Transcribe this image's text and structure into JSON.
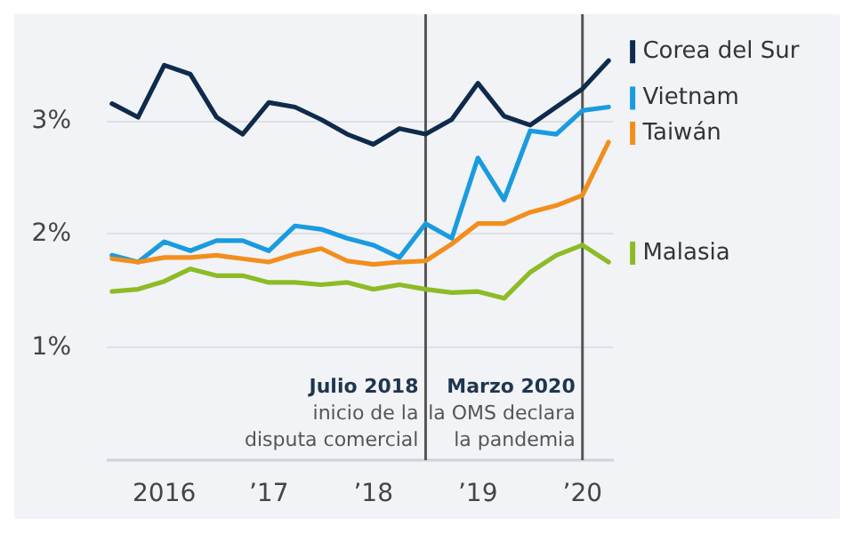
{
  "chart_data": {
    "type": "line",
    "x": [
      2015.5,
      2015.75,
      2016,
      2016.25,
      2016.5,
      2016.75,
      2017,
      2017.25,
      2017.5,
      2017.75,
      2018,
      2018.25,
      2018.5,
      2018.75,
      2019,
      2019.25,
      2019.5,
      2019.75,
      2020,
      2020.25
    ],
    "series": [
      {
        "name": "Corea del Sur",
        "color": "#0f2b4c",
        "values": [
          3.15,
          3.03,
          3.49,
          3.41,
          3.03,
          2.88,
          3.16,
          3.12,
          3.01,
          2.88,
          2.79,
          2.93,
          2.88,
          3.01,
          3.33,
          3.04,
          2.96,
          3.12,
          3.28,
          3.53
        ]
      },
      {
        "name": "Vietnam",
        "color": "#1a9be0",
        "values": [
          1.81,
          1.75,
          1.93,
          1.85,
          1.94,
          1.94,
          1.85,
          2.07,
          2.04,
          1.96,
          1.9,
          1.79,
          2.09,
          1.96,
          2.67,
          2.3,
          2.91,
          2.88,
          3.09,
          3.12
        ]
      },
      {
        "name": "Taiwán",
        "color": "#f28e1e",
        "values": [
          1.78,
          1.75,
          1.79,
          1.79,
          1.81,
          1.78,
          1.75,
          1.82,
          1.87,
          1.76,
          1.73,
          1.75,
          1.76,
          1.91,
          2.09,
          2.09,
          2.19,
          2.25,
          2.34,
          2.81
        ]
      },
      {
        "name": "Malasia",
        "color": "#8dbb26",
        "values": [
          1.49,
          1.51,
          1.58,
          1.69,
          1.63,
          1.63,
          1.57,
          1.57,
          1.55,
          1.57,
          1.51,
          1.55,
          1.51,
          1.48,
          1.49,
          1.43,
          1.66,
          1.81,
          1.9,
          1.75
        ]
      }
    ],
    "xlim": [
      2015.45,
      2020.3
    ],
    "xticks": [
      {
        "value": 2016,
        "label": "2016"
      },
      {
        "value": 2017,
        "label": "’17"
      },
      {
        "value": 2018,
        "label": "’18"
      },
      {
        "value": 2019,
        "label": "’19"
      },
      {
        "value": 2020,
        "label": "’20"
      }
    ],
    "ylim": [
      0,
      3.94
    ],
    "yticks": [
      {
        "value": 1,
        "label": "1%"
      },
      {
        "value": 2,
        "label": "2%"
      },
      {
        "value": 3,
        "label": "3%"
      }
    ],
    "ref_lines": [
      {
        "axis": "x",
        "value": 2018.5,
        "label": "Julio 2018\ninicio de la\ndisputa comercial",
        "color": "#555555"
      },
      {
        "axis": "x",
        "value": 2020,
        "label": "Marzo 2020\nla OMS declara\nla pandemia",
        "color": "#555555"
      }
    ],
    "grid": "y",
    "legend": "right",
    "marker": "none",
    "line_style": "solid"
  }
}
